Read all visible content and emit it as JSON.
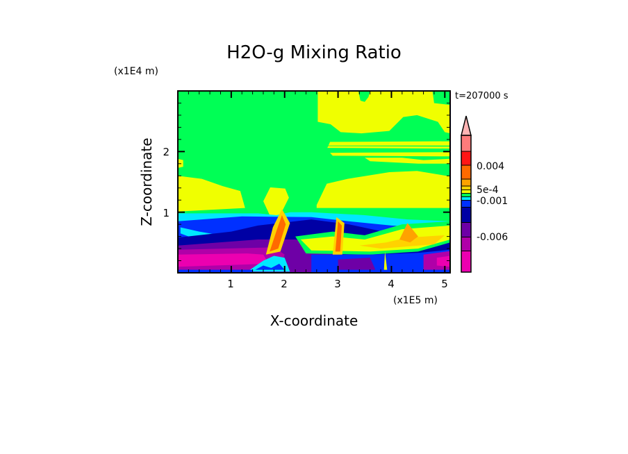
{
  "chart_data": {
    "type": "heatmap",
    "subtype": "filled-contour",
    "title": "H2O-g Mixing Ratio",
    "xlabel": "X-coordinate",
    "ylabel": "Z-coordinate",
    "x_unit": "(x1E5 m)",
    "y_unit": "(x1E4 m)",
    "time_label": "t=207000 s",
    "xlim": [
      0,
      5.1
    ],
    "ylim": [
      0,
      3.0
    ],
    "x_ticks": [
      "1",
      "2",
      "3",
      "4",
      "5"
    ],
    "y_ticks": [
      "1",
      "2"
    ],
    "colorbar": {
      "extend": "max",
      "extend_color": "#ffb4b4",
      "colors_top_to_bottom": [
        "#ff7b7b",
        "#ff1616",
        "#ff6a00",
        "#ffa200",
        "#ffd200",
        "#f0ff00",
        "#00ff55",
        "#00e8ff",
        "#0030ff",
        "#0000a4",
        "#6e00a6",
        "#b000a8",
        "#ec00b0"
      ],
      "labels": [
        {
          "text": "0.004",
          "after_index": 1
        },
        {
          "text": "5e-4",
          "after_index": 4
        },
        {
          "text": "-0.001",
          "after_index": 7
        },
        {
          "text": "-0.006",
          "after_index": 10
        }
      ]
    },
    "regions": [
      {
        "color": "#00ff55",
        "poly": [
          [
            0,
            0
          ],
          [
            5.1,
            0
          ],
          [
            5.1,
            3
          ],
          [
            0,
            3
          ]
        ]
      },
      {
        "color": "#f0ff00",
        "poly": [
          [
            2.62,
            3
          ],
          [
            2.62,
            2.49
          ],
          [
            2.86,
            2.45
          ],
          [
            3.05,
            2.32
          ],
          [
            3.44,
            2.3
          ],
          [
            3.96,
            2.34
          ],
          [
            4.22,
            2.57
          ],
          [
            4.48,
            2.6
          ],
          [
            4.87,
            2.49
          ],
          [
            5.0,
            2.32
          ],
          [
            5.1,
            2.3
          ],
          [
            5.1,
            2.77
          ],
          [
            4.8,
            2.8
          ],
          [
            4.77,
            3
          ]
        ]
      },
      {
        "color": "#00ff55",
        "poly": [
          [
            3.38,
            3
          ],
          [
            3.42,
            2.84
          ],
          [
            3.5,
            2.82
          ],
          [
            3.57,
            2.9
          ],
          [
            3.6,
            3
          ]
        ]
      },
      {
        "color": "#f0ff00",
        "poly": [
          [
            2.85,
            2.16
          ],
          [
            5.1,
            2.17
          ],
          [
            5.1,
            2.05
          ],
          [
            2.8,
            2.06
          ]
        ]
      },
      {
        "color": "#00ff55",
        "poly": [
          [
            2.8,
            2.1
          ],
          [
            5.1,
            2.1
          ],
          [
            5.1,
            2.08
          ],
          [
            2.8,
            2.09
          ]
        ]
      },
      {
        "color": "#f0ff00",
        "poly": [
          [
            2.85,
            1.98
          ],
          [
            5.1,
            1.99
          ],
          [
            5.1,
            1.92
          ],
          [
            2.9,
            1.93
          ]
        ]
      },
      {
        "color": "#f0ff00",
        "poly": [
          [
            3.5,
            1.9
          ],
          [
            4.2,
            1.9
          ],
          [
            4.6,
            1.86
          ],
          [
            5.1,
            1.88
          ],
          [
            5.1,
            1.8
          ],
          [
            4.5,
            1.8
          ],
          [
            3.6,
            1.84
          ]
        ]
      },
      {
        "color": "#f0ff00",
        "poly": [
          [
            0,
            1.6
          ],
          [
            0.45,
            1.55
          ],
          [
            0.84,
            1.43
          ],
          [
            1.17,
            1.35
          ],
          [
            1.26,
            1.07
          ],
          [
            0,
            1.01
          ]
        ]
      },
      {
        "color": "#f0ff00",
        "poly": [
          [
            0,
            1.88
          ],
          [
            0.1,
            1.86
          ],
          [
            0.1,
            1.75
          ],
          [
            0,
            1.73
          ]
        ]
      },
      {
        "color": "#f0ff00",
        "poly": [
          [
            2.6,
            1.12
          ],
          [
            2.79,
            1.47
          ],
          [
            3.18,
            1.55
          ],
          [
            3.96,
            1.66
          ],
          [
            4.48,
            1.68
          ],
          [
            5.1,
            1.59
          ],
          [
            5.1,
            1.07
          ],
          [
            2.6,
            1.07
          ]
        ]
      },
      {
        "color": "#f0ff00",
        "poly": [
          [
            1.6,
            1.18
          ],
          [
            1.73,
            1.41
          ],
          [
            2.01,
            1.39
          ],
          [
            2.08,
            1.24
          ],
          [
            1.95,
            1.01
          ],
          [
            1.82,
            0.73
          ],
          [
            1.69,
            1.01
          ]
        ]
      },
      {
        "color": "#00e8ff",
        "poly": [
          [
            0,
            0.98
          ],
          [
            1.5,
            0.98
          ],
          [
            1.85,
            0.95
          ],
          [
            2.1,
            1.0
          ],
          [
            2.5,
            1.0
          ],
          [
            3.5,
            0.95
          ],
          [
            4.3,
            0.88
          ],
          [
            5.1,
            0.85
          ],
          [
            5.1,
            0
          ],
          [
            0,
            0
          ]
        ]
      },
      {
        "color": "#0030ff",
        "poly": [
          [
            0,
            0.85
          ],
          [
            1.2,
            0.93
          ],
          [
            2.5,
            0.92
          ],
          [
            3.2,
            0.85
          ],
          [
            4.0,
            0.78
          ],
          [
            5.1,
            0.72
          ],
          [
            5.1,
            0
          ],
          [
            0,
            0
          ]
        ]
      },
      {
        "color": "#00e8ff",
        "poly": [
          [
            0.05,
            0.75
          ],
          [
            0.4,
            0.68
          ],
          [
            0.8,
            0.62
          ],
          [
            0.6,
            0.55
          ],
          [
            0.2,
            0.6
          ],
          [
            0.05,
            0.65
          ]
        ]
      },
      {
        "color": "#0000a4",
        "poly": [
          [
            0,
            0.58
          ],
          [
            1.0,
            0.68
          ],
          [
            1.5,
            0.78
          ],
          [
            2.5,
            0.88
          ],
          [
            3.2,
            0.8
          ],
          [
            4.0,
            0.65
          ],
          [
            4.5,
            0.55
          ],
          [
            5.1,
            0.5
          ],
          [
            5.1,
            0
          ],
          [
            0,
            0
          ]
        ]
      },
      {
        "color": "#6e00a6",
        "poly": [
          [
            0,
            0.45
          ],
          [
            1.5,
            0.55
          ],
          [
            2.2,
            0.55
          ],
          [
            2.5,
            0.5
          ],
          [
            3.0,
            0.3
          ],
          [
            5.1,
            0.3
          ],
          [
            5.1,
            0
          ],
          [
            0,
            0
          ]
        ]
      },
      {
        "color": "#b000a8",
        "poly": [
          [
            0,
            0.38
          ],
          [
            1.8,
            0.42
          ],
          [
            2.0,
            0.3
          ],
          [
            1.9,
            0.05
          ],
          [
            0,
            0.05
          ]
        ]
      },
      {
        "color": "#ec00b0",
        "poly": [
          [
            0,
            0.3
          ],
          [
            1.3,
            0.32
          ],
          [
            1.6,
            0.3
          ],
          [
            1.7,
            0.15
          ],
          [
            0,
            0.1
          ]
        ]
      },
      {
        "color": "#00ff55",
        "poly": [
          [
            2.2,
            0.6
          ],
          [
            2.9,
            0.68
          ],
          [
            3.5,
            0.62
          ],
          [
            4.2,
            0.8
          ],
          [
            5.1,
            0.85
          ],
          [
            5.1,
            0.5
          ],
          [
            4.5,
            0.35
          ],
          [
            3.6,
            0.3
          ],
          [
            2.4,
            0.32
          ]
        ]
      },
      {
        "color": "#f0ff00",
        "poly": [
          [
            2.3,
            0.55
          ],
          [
            2.9,
            0.6
          ],
          [
            3.5,
            0.55
          ],
          [
            4.2,
            0.72
          ],
          [
            5.1,
            0.78
          ],
          [
            5.1,
            0.55
          ],
          [
            4.5,
            0.4
          ],
          [
            3.6,
            0.35
          ],
          [
            2.5,
            0.37
          ]
        ]
      },
      {
        "color": "#ffd200",
        "poly": [
          [
            3.4,
            0.45
          ],
          [
            3.9,
            0.5
          ],
          [
            4.3,
            0.58
          ],
          [
            5.0,
            0.62
          ],
          [
            4.8,
            0.47
          ],
          [
            3.8,
            0.4
          ]
        ]
      },
      {
        "color": "#0030ff",
        "poly": [
          [
            2.5,
            0.3
          ],
          [
            3.6,
            0.3
          ],
          [
            4.5,
            0.33
          ],
          [
            5.1,
            0.38
          ],
          [
            5.1,
            0
          ],
          [
            2.5,
            0
          ]
        ]
      },
      {
        "color": "#6e00a6",
        "poly": [
          [
            3.0,
            0.22
          ],
          [
            3.6,
            0.25
          ],
          [
            3.7,
            0.05
          ],
          [
            3.0,
            0.05
          ]
        ]
      },
      {
        "color": "#b000a8",
        "poly": [
          [
            4.6,
            0.3
          ],
          [
            5.1,
            0.36
          ],
          [
            5.1,
            0.05
          ],
          [
            4.6,
            0.05
          ]
        ]
      },
      {
        "color": "#ec00b0",
        "poly": [
          [
            4.85,
            0.25
          ],
          [
            5.1,
            0.28
          ],
          [
            5.1,
            0.1
          ],
          [
            4.85,
            0.12
          ]
        ]
      },
      {
        "color": "#ffd200",
        "poly": [
          [
            1.65,
            0.3
          ],
          [
            1.78,
            0.75
          ],
          [
            1.95,
            1.05
          ],
          [
            2.1,
            0.82
          ],
          [
            1.92,
            0.35
          ]
        ]
      },
      {
        "color": "#ff6a00",
        "poly": [
          [
            1.72,
            0.35
          ],
          [
            1.85,
            0.7
          ],
          [
            1.95,
            0.95
          ],
          [
            2.02,
            0.8
          ],
          [
            1.88,
            0.4
          ]
        ]
      },
      {
        "color": "#ffd200",
        "poly": [
          [
            2.9,
            0.3
          ],
          [
            2.97,
            0.92
          ],
          [
            3.12,
            0.82
          ],
          [
            3.08,
            0.3
          ]
        ]
      },
      {
        "color": "#ff6a00",
        "poly": [
          [
            2.95,
            0.35
          ],
          [
            3.0,
            0.85
          ],
          [
            3.07,
            0.78
          ],
          [
            3.04,
            0.35
          ]
        ]
      },
      {
        "color": "#ffa200",
        "poly": [
          [
            4.15,
            0.55
          ],
          [
            4.3,
            0.82
          ],
          [
            4.5,
            0.6
          ],
          [
            4.35,
            0.5
          ]
        ]
      },
      {
        "color": "#00e8ff",
        "poly": [
          [
            1.3,
            0.02
          ],
          [
            1.6,
            0.2
          ],
          [
            1.8,
            0.28
          ],
          [
            2.0,
            0.25
          ],
          [
            2.1,
            0.02
          ]
        ]
      },
      {
        "color": "#0030ff",
        "poly": [
          [
            1.45,
            0.05
          ],
          [
            1.6,
            0.12
          ],
          [
            1.75,
            0.08
          ],
          [
            1.9,
            0.15
          ],
          [
            2.0,
            0.05
          ]
        ]
      },
      {
        "color": "#0030ff",
        "poly": [
          [
            0,
            0.05
          ],
          [
            1.4,
            0.05
          ],
          [
            1.4,
            0
          ],
          [
            0,
            0
          ]
        ]
      },
      {
        "color": "#f0ff00",
        "poly": [
          [
            3.86,
            0.05
          ],
          [
            3.88,
            0.35
          ],
          [
            3.92,
            0.05
          ]
        ]
      }
    ]
  }
}
